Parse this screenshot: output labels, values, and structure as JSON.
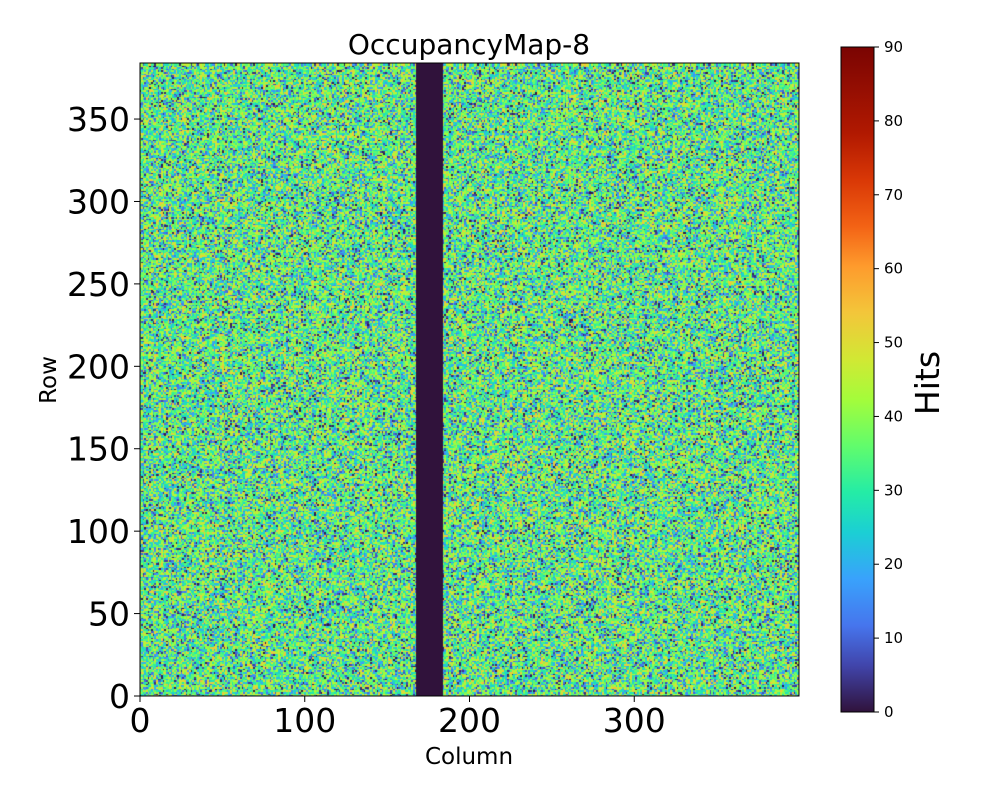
{
  "chart_data": {
    "type": "heatmap",
    "title": "OccupancyMap-8",
    "xlabel": "Column",
    "ylabel": "Row",
    "colorbar_label": "Hits",
    "colormap": "turbo",
    "xlim": [
      0,
      400
    ],
    "ylim": [
      0,
      384
    ],
    "x_ticks": [
      0,
      100,
      200,
      300
    ],
    "y_ticks": [
      0,
      50,
      100,
      150,
      200,
      250,
      300,
      350
    ],
    "colorbar_range": [
      0,
      90
    ],
    "colorbar_ticks": [
      0,
      10,
      20,
      30,
      40,
      50,
      60,
      70,
      80,
      90
    ],
    "grid": false,
    "dead_region": {
      "column_start": 168,
      "column_end": 184,
      "value": 0
    },
    "hit_distribution": {
      "typical_min": 0,
      "typical_max": 55,
      "mode_range": [
        25,
        45
      ]
    }
  }
}
